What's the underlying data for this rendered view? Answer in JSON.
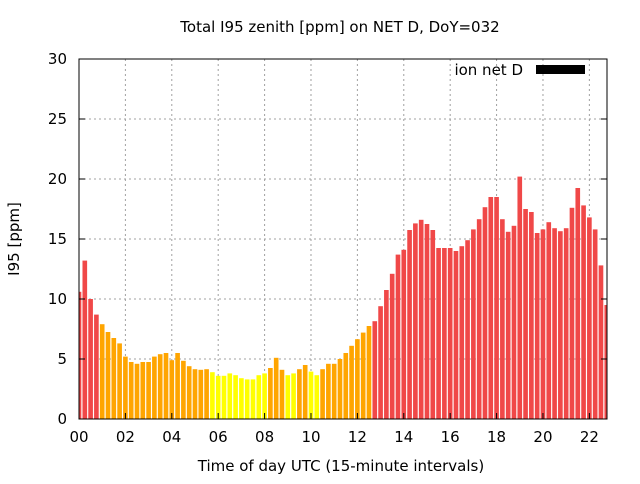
{
  "chart_data": {
    "type": "bar",
    "title": "Total I95 zenith [ppm] on NET D, DoY=032",
    "xlabel": "Time of day UTC (15-minute intervals)",
    "ylabel": "I95 [ppm]",
    "xlim": [
      0,
      22.76
    ],
    "ylim": [
      0,
      30
    ],
    "x_step": 0.25,
    "x_ticks": [
      0,
      2,
      4,
      6,
      8,
      10,
      12,
      14,
      16,
      18,
      20,
      22
    ],
    "x_tick_labels": [
      "00",
      "02",
      "04",
      "06",
      "08",
      "10",
      "12",
      "14",
      "16",
      "18",
      "20",
      "22"
    ],
    "y_ticks": [
      0,
      5,
      10,
      15,
      20,
      25,
      30
    ],
    "y_tick_labels": [
      "0",
      "5",
      "10",
      "15",
      "20",
      "25",
      "30"
    ],
    "grid": true,
    "legend": {
      "label": "ion net D",
      "color": "#000000",
      "placement": "top-right"
    },
    "color_thresholds": {
      "low": 4,
      "high": 8
    },
    "colors": {
      "low": "#ffff00",
      "mid": "#ffa500",
      "high": "#f04848"
    },
    "values": [
      10.6,
      13.2,
      10.0,
      8.7,
      7.9,
      7.25,
      6.75,
      6.3,
      5.2,
      4.75,
      4.6,
      4.75,
      4.75,
      5.2,
      5.4,
      5.5,
      4.9,
      5.5,
      4.85,
      4.4,
      4.15,
      4.1,
      4.15,
      3.9,
      3.6,
      3.6,
      3.8,
      3.65,
      3.4,
      3.3,
      3.3,
      3.65,
      3.8,
      4.25,
      5.1,
      4.1,
      3.65,
      3.8,
      4.15,
      4.5,
      3.95,
      3.65,
      4.15,
      4.6,
      4.6,
      5.0,
      5.5,
      6.1,
      6.65,
      7.2,
      7.75,
      8.15,
      9.4,
      10.75,
      12.1,
      13.7,
      14.1,
      15.75,
      16.3,
      16.6,
      16.25,
      15.75,
      14.25,
      14.25,
      14.25,
      14.0,
      14.4,
      14.9,
      15.8,
      16.65,
      17.65,
      18.5,
      18.5,
      16.65,
      15.6,
      16.1,
      20.2,
      17.5,
      17.25,
      15.5,
      15.8,
      16.4,
      15.9,
      15.65,
      15.9,
      17.6,
      19.25,
      17.8,
      16.8,
      15.8,
      12.8,
      9.5
    ]
  }
}
